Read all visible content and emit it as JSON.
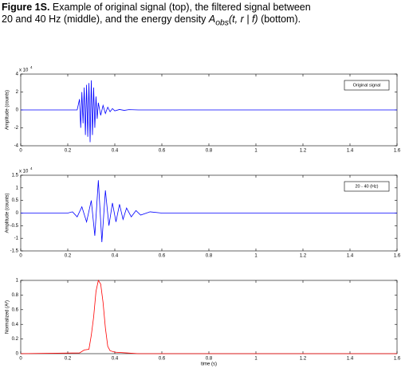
{
  "caption": {
    "label": "Figure 1S.",
    "text": " Example of original signal (top), the filtered signal between 20 and 40 Hz (middle), and the energy density ",
    "symbol": "A",
    "subscript": "obs",
    "args": "(t, r | f)",
    "tail": " (bottom)."
  },
  "chart_data": [
    {
      "type": "line",
      "ylabel": "Amplitude (counts)",
      "y_scale": {
        "base": "x 10",
        "exponent": "4"
      },
      "x": [
        0,
        0.24,
        0.25,
        0.255,
        0.26,
        0.265,
        0.27,
        0.275,
        0.28,
        0.285,
        0.29,
        0.295,
        0.3,
        0.305,
        0.31,
        0.315,
        0.32,
        0.325,
        0.33,
        0.34,
        0.35,
        0.36,
        0.37,
        0.38,
        0.39,
        0.4,
        0.42,
        0.44,
        0.46,
        0.5,
        1.6
      ],
      "series": [
        {
          "name": "Original signal",
          "color": "#0000ff",
          "values": [
            0,
            0,
            1.2,
            -2.0,
            2.0,
            -1.5,
            2.5,
            -2.8,
            2.8,
            -3.0,
            3.0,
            -3.6,
            3.3,
            -2.8,
            2.5,
            -2.0,
            1.5,
            -1.0,
            0.8,
            -0.6,
            0.5,
            -0.4,
            0.3,
            -0.2,
            0.15,
            -0.1,
            0.05,
            -0.05,
            0.03,
            0,
            0
          ]
        }
      ],
      "xlim": [
        0,
        1.6
      ],
      "xticks": [
        0,
        0.2,
        0.4,
        0.6,
        0.8,
        1,
        1.2,
        1.4,
        1.6
      ],
      "ylim": [
        -4,
        4
      ],
      "yticks": [
        -4,
        -2,
        0,
        2,
        4
      ],
      "legend": "upper right"
    },
    {
      "type": "line",
      "ylabel": "Amplitude (counts)",
      "y_scale": {
        "base": "x 10",
        "exponent": "4"
      },
      "x": [
        0,
        0.2,
        0.22,
        0.24,
        0.26,
        0.28,
        0.3,
        0.315,
        0.33,
        0.345,
        0.36,
        0.375,
        0.39,
        0.405,
        0.42,
        0.435,
        0.45,
        0.47,
        0.49,
        0.51,
        0.55,
        0.6,
        1.6
      ],
      "series": [
        {
          "name": "20 - 40 (Hz)",
          "color": "#0000ff",
          "values": [
            0,
            0,
            0.05,
            -0.15,
            0.25,
            -0.35,
            0.5,
            -0.9,
            1.3,
            -1.15,
            0.9,
            -0.5,
            0.4,
            -0.35,
            0.35,
            -0.25,
            0.2,
            -0.15,
            0.1,
            -0.08,
            0.05,
            0,
            0
          ]
        }
      ],
      "xlim": [
        0,
        1.6
      ],
      "xticks": [
        0,
        0.2,
        0.4,
        0.6,
        0.8,
        1,
        1.2,
        1.4,
        1.6
      ],
      "ylim": [
        -1.5,
        1.5
      ],
      "yticks": [
        -1.5,
        -1,
        -0.5,
        0,
        0.5,
        1,
        1.5
      ],
      "legend": "upper right"
    },
    {
      "type": "line",
      "ylabel": "Normalized (A²)",
      "xlabel": "time (s)",
      "color": "#ff0000",
      "x": [
        0,
        0.25,
        0.27,
        0.29,
        0.3,
        0.31,
        0.32,
        0.33,
        0.34,
        0.35,
        0.36,
        0.37,
        0.38,
        0.4,
        0.45,
        0.5,
        1.6
      ],
      "values": [
        0,
        0.01,
        0.05,
        0.06,
        0.25,
        0.5,
        0.85,
        1.0,
        0.95,
        0.7,
        0.35,
        0.1,
        0.04,
        0.02,
        0.01,
        0,
        0
      ],
      "xlim": [
        0,
        1.6
      ],
      "xticks": [
        0,
        0.2,
        0.4,
        0.6,
        0.8,
        1,
        1.2,
        1.4,
        1.6
      ],
      "ylim": [
        0,
        1
      ],
      "yticks": [
        0,
        0.2,
        0.4,
        0.6,
        0.8,
        1
      ]
    }
  ]
}
